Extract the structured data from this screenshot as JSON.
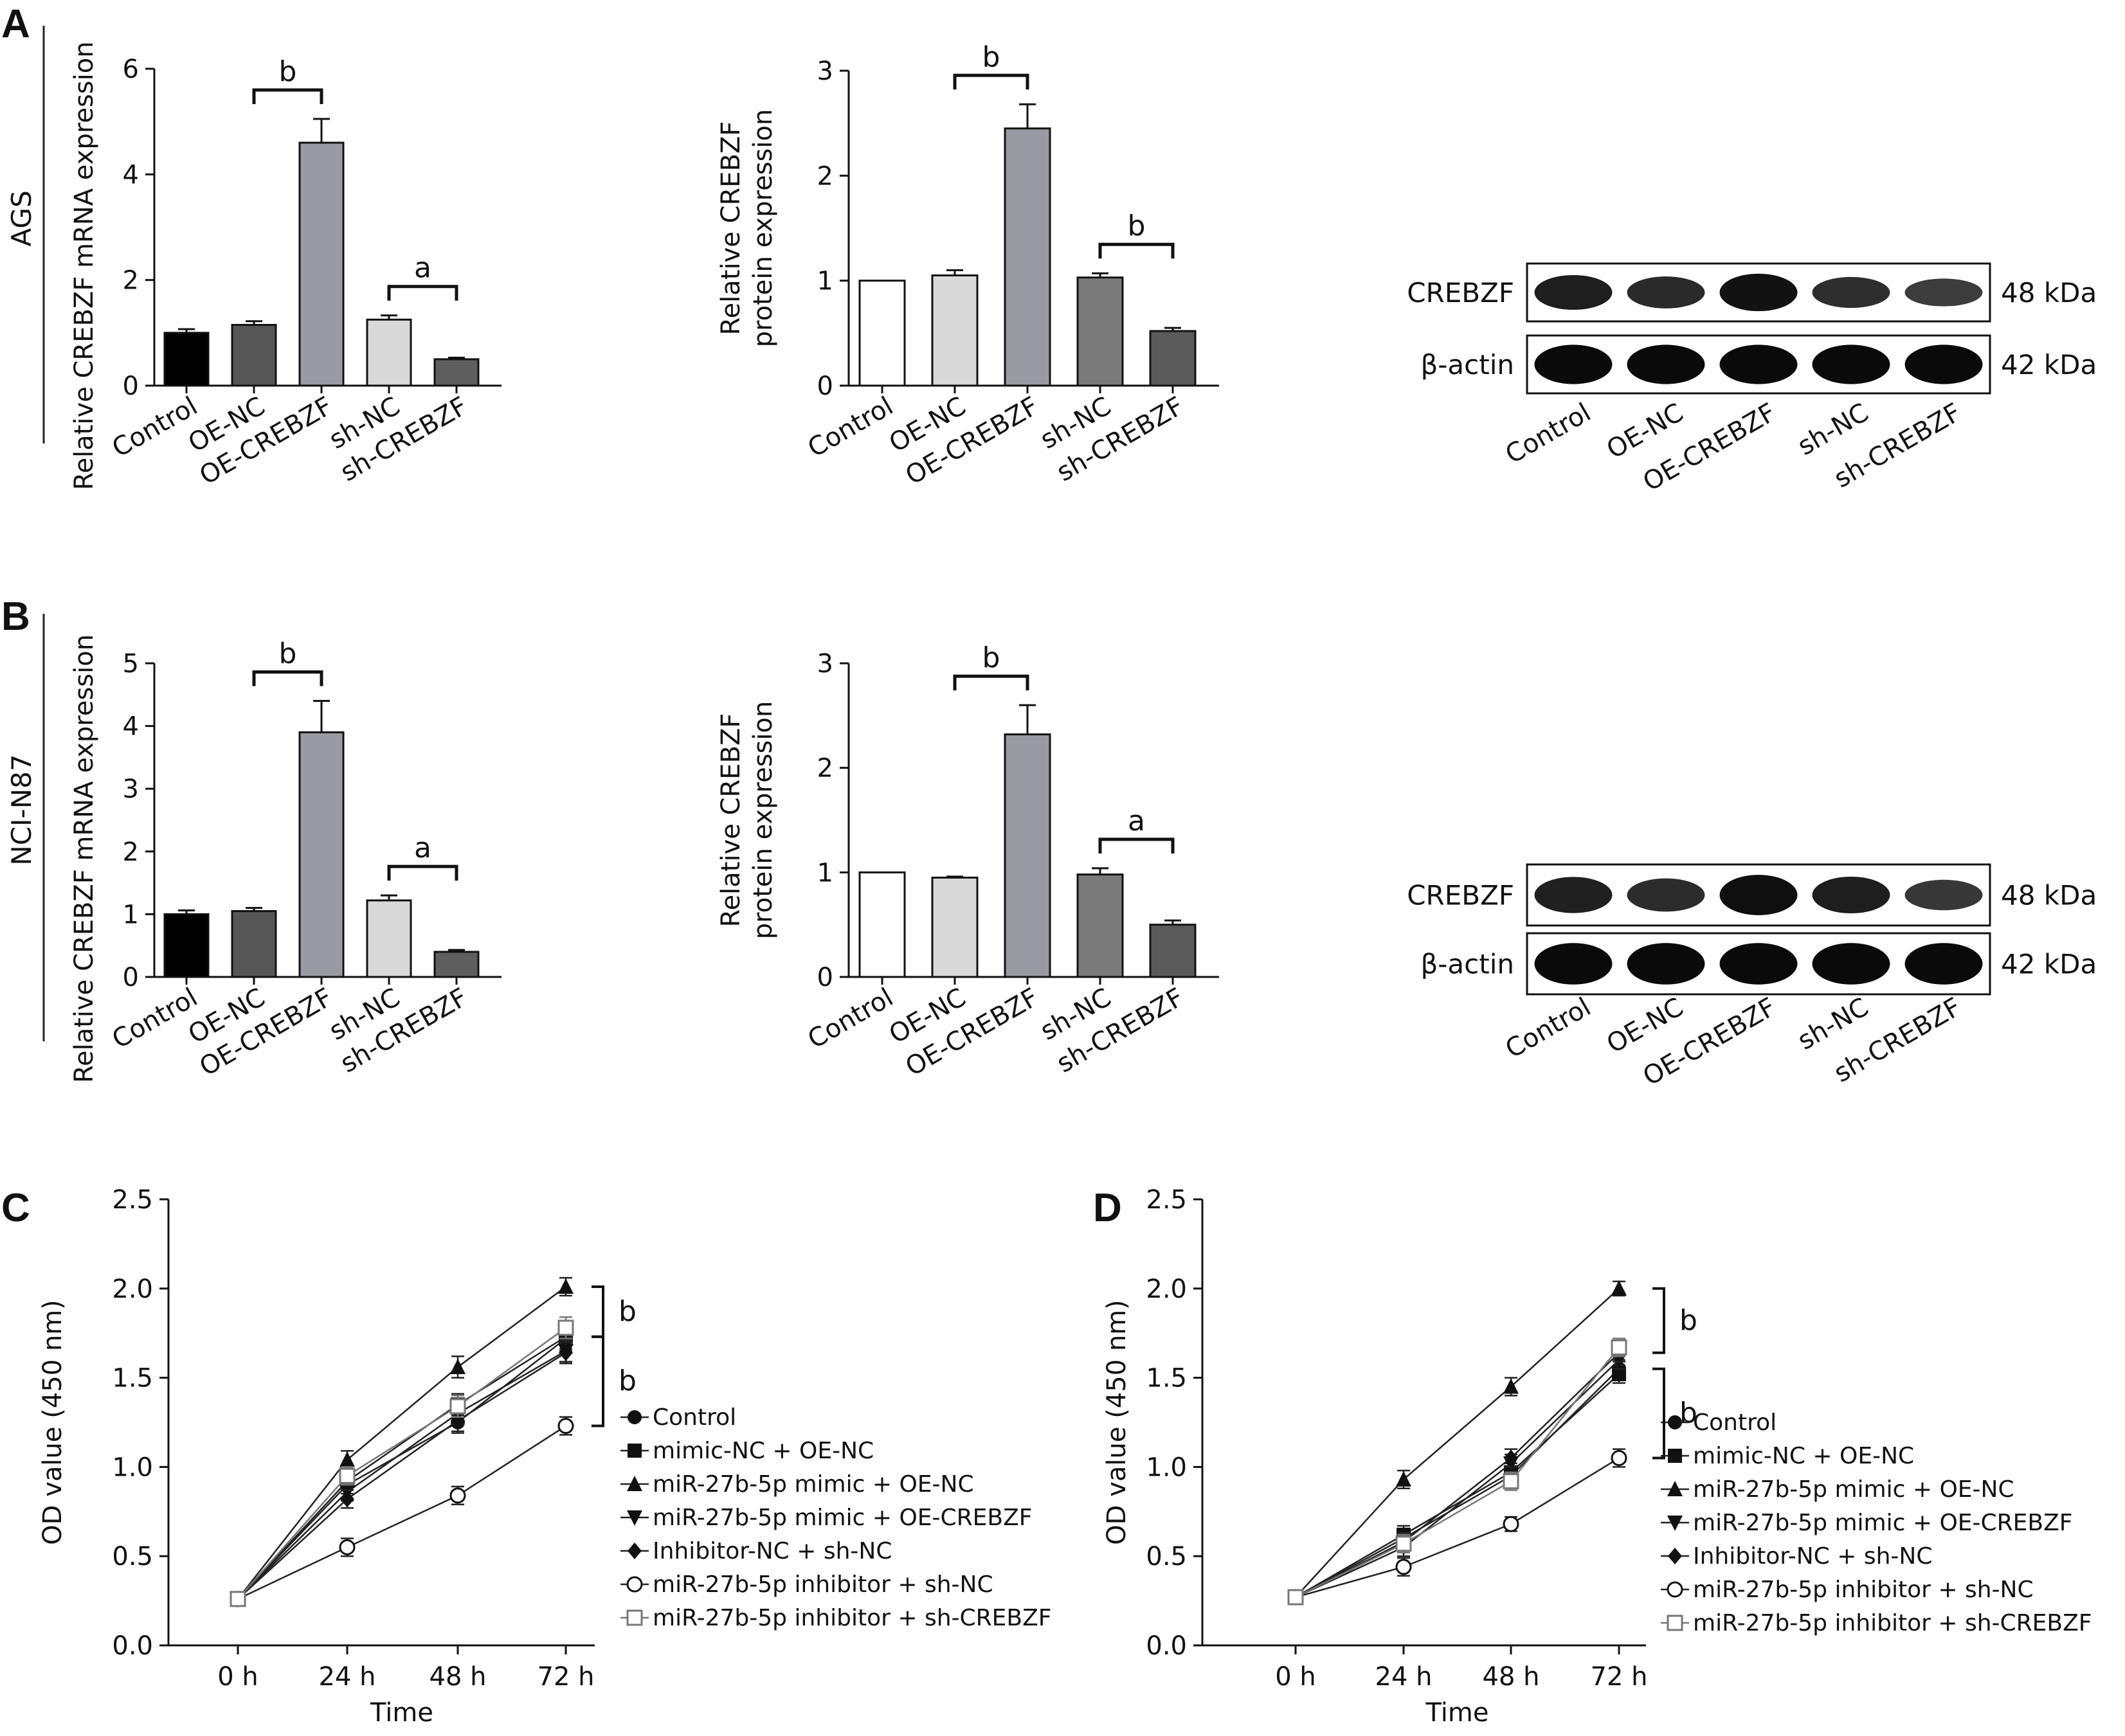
{
  "panels": {
    "A": {
      "letter": "A",
      "cell_line": "AGS"
    },
    "B": {
      "letter": "B",
      "cell_line": "NCI-N87"
    },
    "C": {
      "letter": "C"
    },
    "D": {
      "letter": "D"
    }
  },
  "colors": {
    "Control": "#000000",
    "OE-NC": "#565656",
    "OE-CREBZF": "#9a9aa2",
    "sh-NC": "#d9d9d9",
    "sh-CREBZF": "#5e5e5e",
    "protein_Control": "#ffffff",
    "protein_OE-NC": "#d9d9d9",
    "protein_OE-CREBZF": "#9a9aa2",
    "protein_sh-NC": "#7a7a7a",
    "protein_sh-CREBZF": "#5a5a5a"
  },
  "chart_data": [
    {
      "id": "A_mrna",
      "type": "bar",
      "ylabel": "Relative CREBZF mRNA expression",
      "categories": [
        "Control",
        "OE-NC",
        "OE-CREBZF",
        "sh-NC",
        "sh-CREBZF"
      ],
      "values": [
        1.0,
        1.15,
        4.6,
        1.25,
        0.5
      ],
      "errors": [
        0.07,
        0.07,
        0.45,
        0.08,
        0.03
      ],
      "ylim": [
        0,
        6
      ],
      "yticks": [
        "0",
        "2",
        "4",
        "6"
      ],
      "yticks_values": [
        0,
        2,
        4,
        6
      ],
      "significance": [
        {
          "from": "OE-NC",
          "to": "OE-CREBZF",
          "label": "b"
        },
        {
          "from": "sh-NC",
          "to": "sh-CREBZF",
          "label": "a"
        }
      ]
    },
    {
      "id": "A_protein",
      "type": "bar",
      "ylabel": "Relative CREBZF protein expression",
      "ylabel_lines": [
        "Relative CREBZF",
        "protein expression"
      ],
      "categories": [
        "Control",
        "OE-NC",
        "OE-CREBZF",
        "sh-NC",
        "sh-CREBZF"
      ],
      "values": [
        1.0,
        1.05,
        2.45,
        1.03,
        0.52
      ],
      "errors": [
        0.0,
        0.05,
        0.23,
        0.04,
        0.03
      ],
      "ylim": [
        0,
        3
      ],
      "yticks": [
        "0",
        "1",
        "2",
        "3"
      ],
      "yticks_values": [
        0,
        1,
        2,
        3
      ],
      "significance": [
        {
          "from": "OE-NC",
          "to": "OE-CREBZF",
          "label": "b"
        },
        {
          "from": "sh-NC",
          "to": "sh-CREBZF",
          "label": "b"
        }
      ]
    },
    {
      "id": "B_mrna",
      "type": "bar",
      "ylabel": "Relative CREBZF mRNA expression",
      "categories": [
        "Control",
        "OE-NC",
        "OE-CREBZF",
        "sh-NC",
        "sh-CREBZF"
      ],
      "values": [
        1.0,
        1.05,
        3.9,
        1.22,
        0.4
      ],
      "errors": [
        0.06,
        0.05,
        0.5,
        0.08,
        0.03
      ],
      "ylim": [
        0,
        5
      ],
      "yticks": [
        "0",
        "1",
        "2",
        "3",
        "4",
        "5"
      ],
      "yticks_values": [
        0,
        1,
        2,
        3,
        4,
        5
      ],
      "significance": [
        {
          "from": "OE-NC",
          "to": "OE-CREBZF",
          "label": "b"
        },
        {
          "from": "sh-NC",
          "to": "sh-CREBZF",
          "label": "a"
        }
      ]
    },
    {
      "id": "B_protein",
      "type": "bar",
      "ylabel": "Relative CREBZF protein expression",
      "ylabel_lines": [
        "Relative CREBZF",
        "protein expression"
      ],
      "categories": [
        "Control",
        "OE-NC",
        "OE-CREBZF",
        "sh-NC",
        "sh-CREBZF"
      ],
      "values": [
        1.0,
        0.95,
        2.32,
        0.98,
        0.5
      ],
      "errors": [
        0.0,
        0.01,
        0.28,
        0.06,
        0.04
      ],
      "ylim": [
        0,
        3
      ],
      "yticks": [
        "0",
        "1",
        "2",
        "3"
      ],
      "yticks_values": [
        0,
        1,
        2,
        3
      ],
      "significance": [
        {
          "from": "OE-NC",
          "to": "OE-CREBZF",
          "label": "b"
        },
        {
          "from": "sh-NC",
          "to": "sh-CREBZF",
          "label": "a"
        }
      ]
    },
    {
      "id": "C_line",
      "type": "line",
      "xlabel": "Time",
      "ylabel": "OD value (450 nm)",
      "x": [
        "0 h",
        "24 h",
        "48 h",
        "72 h"
      ],
      "ylim": [
        0,
        2.5
      ],
      "yticks": [
        "0.0",
        "0.5",
        "1.0",
        "1.5",
        "2.0",
        "2.5"
      ],
      "yticks_values": [
        0,
        0.5,
        1.0,
        1.5,
        2.0,
        2.5
      ],
      "series": [
        {
          "name": "Control",
          "marker": "circle",
          "values": [
            0.26,
            0.9,
            1.25,
            1.72
          ],
          "errors": [
            0.02,
            0.05,
            0.06,
            0.07
          ]
        },
        {
          "name": "mimic-NC + OE-NC",
          "marker": "square",
          "values": [
            0.26,
            0.92,
            1.35,
            1.73
          ],
          "errors": [
            0.02,
            0.05,
            0.06,
            0.07
          ]
        },
        {
          "name": "miR-27b-5p mimic + OE-NC",
          "marker": "triangle",
          "values": [
            0.26,
            1.04,
            1.56,
            2.01
          ],
          "errors": [
            0.02,
            0.05,
            0.06,
            0.05
          ]
        },
        {
          "name": "miR-27b-5p mimic + OE-CREBZF",
          "marker": "triangle-down",
          "values": [
            0.26,
            0.86,
            1.3,
            1.65
          ],
          "errors": [
            0.02,
            0.05,
            0.06,
            0.06
          ]
        },
        {
          "name": "Inhibitor-NC + sh-NC",
          "marker": "diamond",
          "values": [
            0.26,
            0.82,
            1.26,
            1.64
          ],
          "errors": [
            0.02,
            0.05,
            0.06,
            0.06
          ]
        },
        {
          "name": "miR-27b-5p inhibitor + sh-NC",
          "marker": "circle-open",
          "values": [
            0.26,
            0.55,
            0.84,
            1.23
          ],
          "errors": [
            0.02,
            0.05,
            0.05,
            0.05
          ]
        },
        {
          "name": "miR-27b-5p inhibitor + sh-CREBZF",
          "marker": "square-open",
          "values": [
            0.26,
            0.95,
            1.34,
            1.78
          ],
          "errors": [
            0.02,
            0.05,
            0.06,
            0.06
          ]
        }
      ],
      "significance": [
        {
          "label": "b",
          "from": 2.01,
          "to": 1.73
        },
        {
          "label": "b",
          "from": 1.73,
          "to": 1.23
        }
      ]
    },
    {
      "id": "D_line",
      "type": "line",
      "xlabel": "Time",
      "ylabel": "OD value (450 nm)",
      "x": [
        "0 h",
        "24 h",
        "48 h",
        "72 h"
      ],
      "ylim": [
        0,
        2.5
      ],
      "yticks": [
        "0.0",
        "0.5",
        "1.0",
        "1.5",
        "2.0",
        "2.5"
      ],
      "yticks_values": [
        0,
        0.5,
        1.0,
        1.5,
        2.0,
        2.5
      ],
      "series": [
        {
          "name": "Control",
          "marker": "circle",
          "values": [
            0.27,
            0.6,
            0.95,
            1.55
          ],
          "errors": [
            0.02,
            0.05,
            0.05,
            0.05
          ]
        },
        {
          "name": "mimic-NC + OE-NC",
          "marker": "square",
          "values": [
            0.27,
            0.62,
            0.97,
            1.52
          ],
          "errors": [
            0.02,
            0.05,
            0.05,
            0.05
          ]
        },
        {
          "name": "miR-27b-5p mimic + OE-NC",
          "marker": "triangle",
          "values": [
            0.27,
            0.93,
            1.45,
            2.0
          ],
          "errors": [
            0.02,
            0.05,
            0.05,
            0.04
          ]
        },
        {
          "name": "miR-27b-5p mimic + OE-CREBZF",
          "marker": "triangle-down",
          "values": [
            0.27,
            0.55,
            1.02,
            1.6
          ],
          "errors": [
            0.02,
            0.05,
            0.05,
            0.05
          ]
        },
        {
          "name": "Inhibitor-NC + sh-NC",
          "marker": "diamond",
          "values": [
            0.27,
            0.58,
            1.05,
            1.64
          ],
          "errors": [
            0.02,
            0.05,
            0.05,
            0.05
          ]
        },
        {
          "name": "miR-27b-5p inhibitor + sh-NC",
          "marker": "circle-open",
          "values": [
            0.27,
            0.44,
            0.68,
            1.05
          ],
          "errors": [
            0.02,
            0.05,
            0.04,
            0.05
          ]
        },
        {
          "name": "miR-27b-5p inhibitor + sh-CREBZF",
          "marker": "square-open",
          "values": [
            0.27,
            0.57,
            0.92,
            1.67
          ],
          "errors": [
            0.02,
            0.05,
            0.05,
            0.05
          ]
        }
      ],
      "significance": [
        {
          "label": "b",
          "from": 2.0,
          "to": 1.64
        },
        {
          "label": "b",
          "from": 1.55,
          "to": 1.05
        }
      ]
    }
  ],
  "blots": [
    {
      "id": "A_blot",
      "bands": [
        {
          "name": "CREBZF",
          "size": "48 kDa",
          "intensity": [
            0.8,
            0.68,
            0.92,
            0.64,
            0.5
          ]
        },
        {
          "name": "β-actin",
          "size": "42 kDa",
          "intensity": [
            1.0,
            1.0,
            1.0,
            1.0,
            1.0
          ]
        }
      ],
      "lanes": [
        "Control",
        "OE-NC",
        "OE-CREBZF",
        "sh-NC",
        "sh-CREBZF"
      ]
    },
    {
      "id": "B_blot",
      "bands": [
        {
          "name": "CREBZF",
          "size": "48 kDa",
          "intensity": [
            0.78,
            0.66,
            0.95,
            0.8,
            0.55
          ]
        },
        {
          "name": "β-actin",
          "size": "42 kDa",
          "intensity": [
            1.0,
            1.0,
            1.0,
            1.0,
            1.0
          ]
        }
      ],
      "lanes": [
        "Control",
        "OE-NC",
        "OE-CREBZF",
        "sh-NC",
        "sh-CREBZF"
      ]
    }
  ]
}
